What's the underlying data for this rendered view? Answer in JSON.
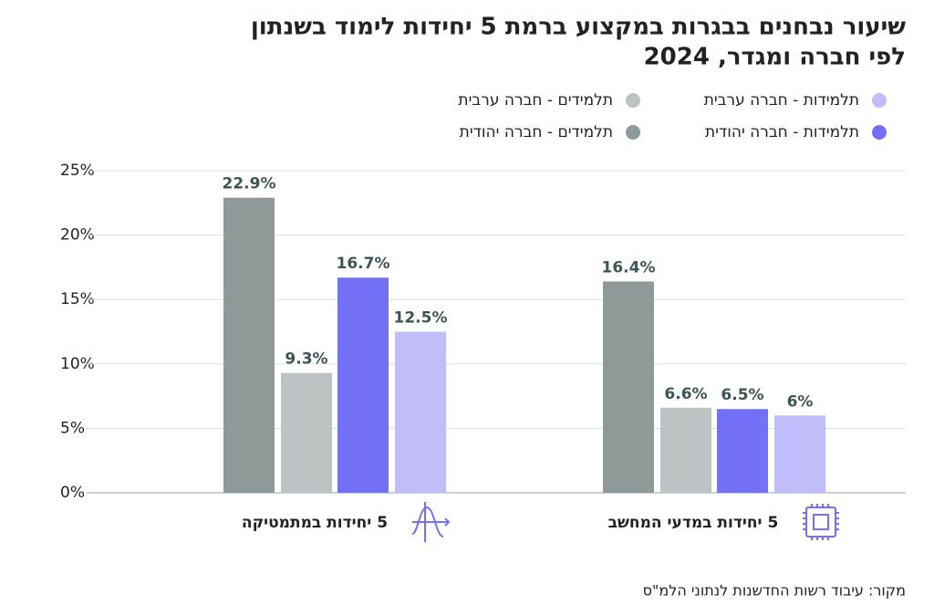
{
  "chart_data": {
    "type": "bar",
    "title": [
      "שיעור נבחנים בבגרות במקצוע ברמת 5 יחידות לימוד בשנתון",
      "לפי חברה ומגדר, 2024"
    ],
    "categories": [
      "5 יחידות במתמטיקה",
      "5 יחידות במדעי המחשב"
    ],
    "series": [
      {
        "name": "תלמידים - חברה יהודית",
        "color": "#8f9997",
        "values": [
          22.9,
          16.4
        ],
        "value_labels": [
          "22.9%",
          "16.4%"
        ]
      },
      {
        "name": "תלמידים - חברה ערבית",
        "color": "#bcc3c2",
        "values": [
          9.3,
          6.6
        ],
        "value_labels": [
          "9.3%",
          "6.6%"
        ]
      },
      {
        "name": "תלמידות - חברה יהודית",
        "color": "#7370f5",
        "values": [
          16.7,
          6.5
        ],
        "value_labels": [
          "16.7%",
          "6.5%"
        ]
      },
      {
        "name": "תלמידות - חברה ערבית",
        "color": "#c0bdfa",
        "values": [
          12.5,
          6
        ],
        "value_labels": [
          "12.5%",
          "6%"
        ]
      }
    ],
    "ylim": [
      0,
      25
    ],
    "yticks": [
      {
        "value": 0,
        "label": "0%"
      },
      {
        "value": 5,
        "label": "5%"
      },
      {
        "value": 10,
        "label": "10%"
      },
      {
        "value": 15,
        "label": "15%"
      },
      {
        "value": 20,
        "label": "20%"
      },
      {
        "value": 25,
        "label": "25%"
      }
    ],
    "grid": true,
    "source": "מקור: עיבוד רשות החדשנות לנתוני הלמ\"ס"
  }
}
